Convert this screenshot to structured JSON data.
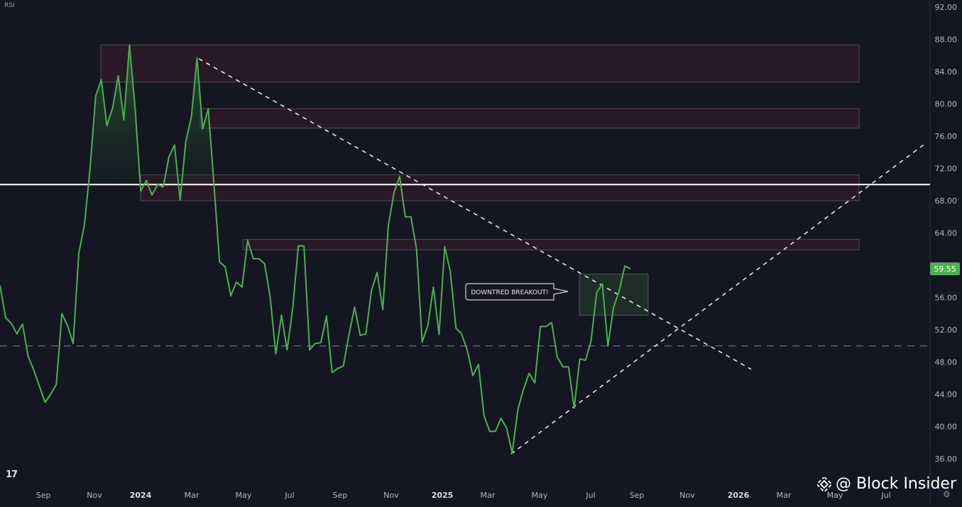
{
  "indicator_label": "RSI",
  "watermark": {
    "text": "@ Block Insider",
    "icon": "binance-diamond-icon"
  },
  "tv_logo": "17",
  "settings_icon": "gear-icon",
  "chart_data": {
    "type": "line",
    "title": "",
    "indicator": "RSI",
    "ylim": [
      34,
      92
    ],
    "y_ticks": [
      "36.00",
      "40.00",
      "44.00",
      "48.00",
      "52.00",
      "56.00",
      "60.00",
      "64.00",
      "68.00",
      "72.00",
      "76.00",
      "80.00",
      "84.00",
      "88.00",
      "92.00"
    ],
    "x_ticks": [
      "Sep",
      "Nov",
      "2024",
      "Mar",
      "May",
      "Jul",
      "Sep",
      "Nov",
      "2025",
      "Mar",
      "May",
      "Jul",
      "Sep",
      "Nov",
      "2026",
      "Mar",
      "May",
      "Jul"
    ],
    "last_value": "59.55",
    "colors": {
      "background": "#141722",
      "rsi_line": "#4caf50",
      "level_line": "#ffffff",
      "zone_fill": "#3a1a2a",
      "badge": "#4caf50"
    },
    "level_70": 70,
    "level_50_dashed": 50,
    "series": [
      {
        "values": [
          57.5,
          53.5,
          52.8,
          51.5,
          52.7,
          48.7,
          47,
          45,
          43,
          44,
          45.2,
          54,
          52.5,
          50.3,
          61.5,
          65,
          72,
          81,
          83,
          77.3,
          79.5,
          83.5,
          78,
          87.3,
          79.5,
          69.2,
          70.5,
          68.7,
          70,
          69.7,
          73.4,
          74.9,
          68.1,
          75.3,
          78.4,
          85.7,
          76.9,
          79.4,
          70.1,
          60.4,
          59.8,
          56.2,
          57.9,
          57.3,
          63.1,
          60.8,
          60.8,
          60.2,
          56,
          49,
          53.8,
          49.5,
          54.6,
          62.4,
          62.4,
          49.5,
          50.3,
          50.4,
          53.7,
          46.7,
          47.2,
          47.5,
          51.4,
          54.8,
          51.3,
          51.5,
          56.9,
          59.1,
          54.5,
          65,
          69,
          71,
          66,
          66,
          62,
          50.5,
          52.5,
          57.3,
          51.4,
          62.3,
          59.2,
          52.2,
          51.5,
          49.5,
          46.3,
          47.7,
          41.3,
          39.4,
          39.4,
          41,
          39.8,
          36.7,
          42.1,
          44.6,
          46.6,
          45.4,
          52.4,
          52.4,
          52.9,
          48.6,
          47.4,
          47.4,
          42.3,
          48.4,
          48.2,
          50.6,
          56.6,
          57.7,
          50,
          54.8,
          56.8,
          59.9,
          59.55
        ]
      }
    ],
    "zones": [
      {
        "label": "zone-top",
        "y_low": 82.7,
        "y_high": 87.3
      },
      {
        "label": "zone-2",
        "y_low": 77,
        "y_high": 79.4
      },
      {
        "label": "zone-3",
        "y_low": 68,
        "y_high": 71.2
      },
      {
        "label": "zone-4",
        "y_low": 61.9,
        "y_high": 63.2
      }
    ],
    "breakout_box": {
      "y_low": 53.8,
      "y_high": 58.9
    },
    "annotation": "DOWNTRED BREAKOUT!"
  }
}
